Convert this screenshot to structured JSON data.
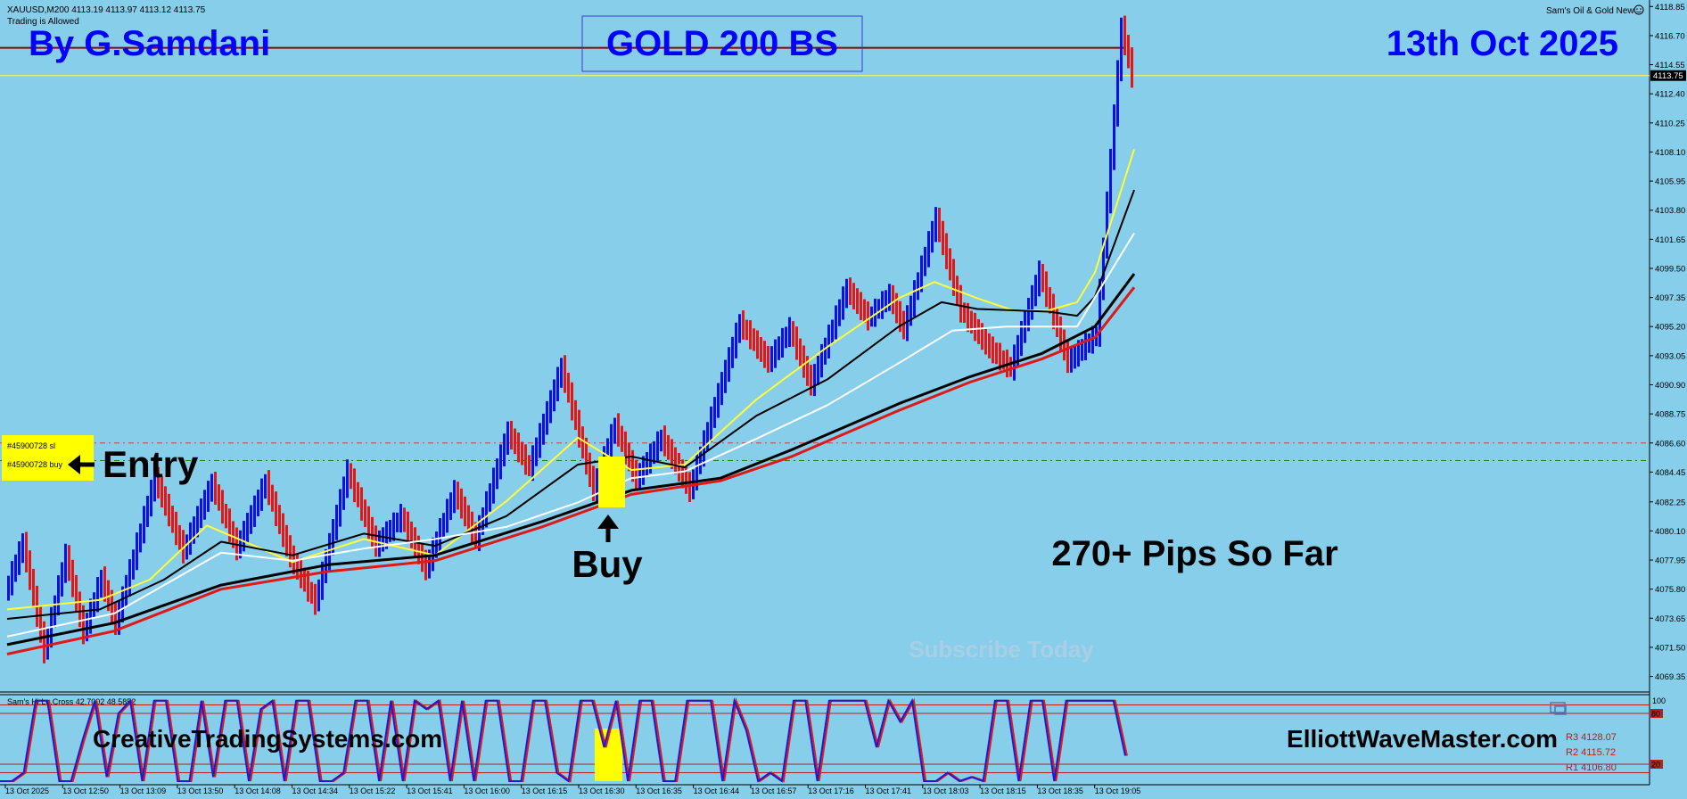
{
  "header": {
    "symbol_line": "XAUUSD,M200  4113.19 4113.97 4113.12 4113.75",
    "trading_status": "Trading is Allowed",
    "indicator_name": "Sam's Oil & Gold New",
    "indicator_icon": "smiley-icon"
  },
  "overlays": {
    "author": "By G.Samdani",
    "strategy": "GOLD 200 BS",
    "date": "13th Oct 2025",
    "entry_label": "Entry",
    "buy_label": "Buy",
    "pips_text": "270+ Pips So Far",
    "subscribe_text": "Subscribe Today",
    "website_left": "CreativeTradingSystems.com",
    "website_right": "ElliottWaveMaster.com"
  },
  "orders": {
    "sl_tag": "#45900728 sl",
    "buy_tag": "#45900728 buy"
  },
  "colors": {
    "background": "#87ceeb",
    "bull_candle": "#1010e0",
    "bear_candle": "#e01818",
    "ma_yellow": "#ffff33",
    "ma_black": "#000000",
    "ma_white": "#ffffff",
    "ma_red": "#e01818",
    "resistance_line": "#8b0000",
    "title_blue": "#0000ff",
    "highlight": "#ffff00"
  },
  "chart_data": {
    "type": "line",
    "symbol": "XAUUSD",
    "timeframe": "M200",
    "ylim": [
      4068.2,
      4119.2
    ],
    "y_ticks": [
      "4118.85",
      "4116.70",
      "4114.55",
      "4112.40",
      "4110.25",
      "4108.10",
      "4105.95",
      "4103.80",
      "4101.65",
      "4099.50",
      "4097.35",
      "4095.20",
      "4093.05",
      "4090.90",
      "4088.75",
      "4086.60",
      "4084.45",
      "4082.25",
      "4080.10",
      "4077.95",
      "4075.80",
      "4073.65",
      "4071.50",
      "4069.35"
    ],
    "x_ticks": [
      "13 Oct 2025",
      "13 Oct 12:50",
      "13 Oct 13:09",
      "13 Oct 13:50",
      "13 Oct 14:08",
      "13 Oct 14:34",
      "13 Oct 15:22",
      "13 Oct 15:41",
      "13 Oct 16:00",
      "13 Oct 16:15",
      "13 Oct 16:30",
      "13 Oct 16:35",
      "13 Oct 16:44",
      "13 Oct 16:57",
      "13 Oct 17:16",
      "13 Oct 17:41",
      "13 Oct 18:03",
      "13 Oct 18:15",
      "13 Oct 18:35",
      "13 Oct 19:05"
    ],
    "current_price": "4113.75",
    "resistance_level": 4115.8,
    "current_level": 4113.75,
    "stop_loss_level": 4086.6,
    "entry_level": 4085.3,
    "price_swings": [
      {
        "bar": 0,
        "price": 4075.5
      },
      {
        "bar": 5,
        "price": 4079.2
      },
      {
        "bar": 11,
        "price": 4071.2
      },
      {
        "bar": 17,
        "price": 4078.3
      },
      {
        "bar": 22,
        "price": 4072.6
      },
      {
        "bar": 27,
        "price": 4076.6
      },
      {
        "bar": 31,
        "price": 4073.2
      },
      {
        "bar": 42,
        "price": 4084.0
      },
      {
        "bar": 50,
        "price": 4078.6
      },
      {
        "bar": 58,
        "price": 4083.6
      },
      {
        "bar": 65,
        "price": 4078.8
      },
      {
        "bar": 73,
        "price": 4083.7
      },
      {
        "bar": 80,
        "price": 4078.2
      },
      {
        "bar": 87,
        "price": 4074.8
      },
      {
        "bar": 96,
        "price": 4084.5
      },
      {
        "bar": 104,
        "price": 4079.0
      },
      {
        "bar": 111,
        "price": 4081.2
      },
      {
        "bar": 118,
        "price": 4077.3
      },
      {
        "bar": 126,
        "price": 4083.0
      },
      {
        "bar": 132,
        "price": 4079.5
      },
      {
        "bar": 141,
        "price": 4087.4
      },
      {
        "bar": 147,
        "price": 4084.7
      },
      {
        "bar": 156,
        "price": 4092.2
      },
      {
        "bar": 165,
        "price": 4083.1
      },
      {
        "bar": 171,
        "price": 4087.9
      },
      {
        "bar": 177,
        "price": 4083.9
      },
      {
        "bar": 184,
        "price": 4087.0
      },
      {
        "bar": 192,
        "price": 4083.1
      },
      {
        "bar": 206,
        "price": 4095.5
      },
      {
        "bar": 214,
        "price": 4092.6
      },
      {
        "bar": 220,
        "price": 4095.0
      },
      {
        "bar": 226,
        "price": 4090.9
      },
      {
        "bar": 236,
        "price": 4098.0
      },
      {
        "bar": 242,
        "price": 4095.8
      },
      {
        "bar": 248,
        "price": 4097.5
      },
      {
        "bar": 252,
        "price": 4095.0
      },
      {
        "bar": 261,
        "price": 4103.2
      },
      {
        "bar": 268,
        "price": 4096.4
      },
      {
        "bar": 276,
        "price": 4093.6
      },
      {
        "bar": 282,
        "price": 4092.1
      },
      {
        "bar": 290,
        "price": 4099.2
      },
      {
        "bar": 298,
        "price": 4092.6
      },
      {
        "bar": 306,
        "price": 4094.6
      },
      {
        "bar": 313,
        "price": 4117.3
      },
      {
        "bar": 316,
        "price": 4113.75
      }
    ],
    "moving_averages": [
      {
        "name": "",
        "color": "yellow",
        "points": [
          {
            "bar": 0,
            "price": 4074.3
          },
          {
            "bar": 26,
            "price": 4075.0
          },
          {
            "bar": 40,
            "price": 4076.5
          },
          {
            "bar": 56,
            "price": 4080.5
          },
          {
            "bar": 80,
            "price": 4077.8
          },
          {
            "bar": 100,
            "price": 4079.5
          },
          {
            "bar": 120,
            "price": 4078.3
          },
          {
            "bar": 140,
            "price": 4082.3
          },
          {
            "bar": 160,
            "price": 4087.0
          },
          {
            "bar": 175,
            "price": 4084.6
          },
          {
            "bar": 190,
            "price": 4085.0
          },
          {
            "bar": 210,
            "price": 4089.8
          },
          {
            "bar": 230,
            "price": 4093.7
          },
          {
            "bar": 250,
            "price": 4097.3
          },
          {
            "bar": 260,
            "price": 4098.5
          },
          {
            "bar": 272,
            "price": 4097.3
          },
          {
            "bar": 282,
            "price": 4096.4
          },
          {
            "bar": 292,
            "price": 4096.4
          },
          {
            "bar": 300,
            "price": 4097.0
          },
          {
            "bar": 305,
            "price": 4099.2
          },
          {
            "bar": 316,
            "price": 4108.3
          }
        ]
      },
      {
        "name": "",
        "color": "black",
        "points": [
          {
            "bar": 0,
            "price": 4073.6
          },
          {
            "bar": 26,
            "price": 4074.3
          },
          {
            "bar": 44,
            "price": 4076.5
          },
          {
            "bar": 60,
            "price": 4079.3
          },
          {
            "bar": 80,
            "price": 4078.3
          },
          {
            "bar": 100,
            "price": 4079.9
          },
          {
            "bar": 120,
            "price": 4079.0
          },
          {
            "bar": 140,
            "price": 4081.2
          },
          {
            "bar": 160,
            "price": 4085.0
          },
          {
            "bar": 175,
            "price": 4085.6
          },
          {
            "bar": 190,
            "price": 4084.8
          },
          {
            "bar": 210,
            "price": 4088.6
          },
          {
            "bar": 230,
            "price": 4091.3
          },
          {
            "bar": 250,
            "price": 4095.2
          },
          {
            "bar": 262,
            "price": 4097.0
          },
          {
            "bar": 272,
            "price": 4096.5
          },
          {
            "bar": 292,
            "price": 4096.3
          },
          {
            "bar": 300,
            "price": 4096.0
          },
          {
            "bar": 305,
            "price": 4097.4
          },
          {
            "bar": 316,
            "price": 4105.3
          }
        ]
      },
      {
        "name": "",
        "color": "white",
        "points": [
          {
            "bar": 0,
            "price": 4072.3
          },
          {
            "bar": 30,
            "price": 4074.0
          },
          {
            "bar": 60,
            "price": 4078.5
          },
          {
            "bar": 80,
            "price": 4077.9
          },
          {
            "bar": 100,
            "price": 4078.8
          },
          {
            "bar": 120,
            "price": 4079.5
          },
          {
            "bar": 140,
            "price": 4080.4
          },
          {
            "bar": 160,
            "price": 4082.2
          },
          {
            "bar": 175,
            "price": 4084.0
          },
          {
            "bar": 190,
            "price": 4084.5
          },
          {
            "bar": 210,
            "price": 4086.9
          },
          {
            "bar": 230,
            "price": 4089.4
          },
          {
            "bar": 250,
            "price": 4092.5
          },
          {
            "bar": 265,
            "price": 4094.9
          },
          {
            "bar": 280,
            "price": 4095.2
          },
          {
            "bar": 300,
            "price": 4095.2
          },
          {
            "bar": 316,
            "price": 4102.1
          }
        ]
      },
      {
        "name": "",
        "color": "black",
        "points": [
          {
            "bar": 0,
            "price": 4071.7
          },
          {
            "bar": 30,
            "price": 4073.3
          },
          {
            "bar": 60,
            "price": 4076.1
          },
          {
            "bar": 90,
            "price": 4077.6
          },
          {
            "bar": 120,
            "price": 4078.3
          },
          {
            "bar": 150,
            "price": 4080.8
          },
          {
            "bar": 175,
            "price": 4083.1
          },
          {
            "bar": 200,
            "price": 4084.0
          },
          {
            "bar": 220,
            "price": 4086.1
          },
          {
            "bar": 250,
            "price": 4089.5
          },
          {
            "bar": 270,
            "price": 4091.5
          },
          {
            "bar": 290,
            "price": 4093.2
          },
          {
            "bar": 305,
            "price": 4095.2
          },
          {
            "bar": 316,
            "price": 4099.1
          }
        ]
      },
      {
        "name": "",
        "color": "red",
        "points": [
          {
            "bar": 0,
            "price": 4071.0
          },
          {
            "bar": 30,
            "price": 4072.7
          },
          {
            "bar": 60,
            "price": 4075.8
          },
          {
            "bar": 90,
            "price": 4077.1
          },
          {
            "bar": 120,
            "price": 4077.9
          },
          {
            "bar": 150,
            "price": 4080.4
          },
          {
            "bar": 175,
            "price": 4082.8
          },
          {
            "bar": 200,
            "price": 4083.8
          },
          {
            "bar": 220,
            "price": 4085.6
          },
          {
            "bar": 250,
            "price": 4089.0
          },
          {
            "bar": 270,
            "price": 4091.1
          },
          {
            "bar": 290,
            "price": 4092.8
          },
          {
            "bar": 305,
            "price": 4094.4
          },
          {
            "bar": 316,
            "price": 4098.1
          }
        ]
      }
    ],
    "oscillator": {
      "title": "Sam's Hi.Lo.Cross 42.7002 48.5852",
      "scale_top": "100",
      "scale_marks": [
        "80",
        "20"
      ],
      "ylim": [
        0,
        100
      ],
      "levels": [
        90,
        80,
        20,
        10
      ],
      "values": [
        0,
        0,
        10,
        95,
        95,
        0,
        0,
        50,
        95,
        5,
        80,
        95,
        0,
        95,
        95,
        0,
        0,
        95,
        5,
        95,
        95,
        0,
        85,
        95,
        0,
        95,
        95,
        0,
        0,
        10,
        95,
        95,
        0,
        95,
        0,
        95,
        85,
        95,
        0,
        95,
        0,
        95,
        95,
        0,
        0,
        95,
        95,
        10,
        0,
        95,
        95,
        40,
        95,
        0,
        95,
        95,
        0,
        0,
        95,
        95,
        95,
        0,
        95,
        60,
        0,
        10,
        0,
        95,
        95,
        0,
        95,
        95,
        95,
        95,
        40,
        95,
        70,
        95,
        0,
        0,
        10,
        0,
        5,
        0,
        95,
        95,
        0,
        95,
        95,
        0,
        95,
        95,
        95,
        95,
        95,
        30
      ]
    },
    "pivots": [
      {
        "left": "R3",
        "left_value": "4128.07"
      },
      {
        "left": "R2",
        "left_value": "4115.72"
      },
      {
        "left": "R1",
        "left_value": "4106.80"
      }
    ]
  }
}
